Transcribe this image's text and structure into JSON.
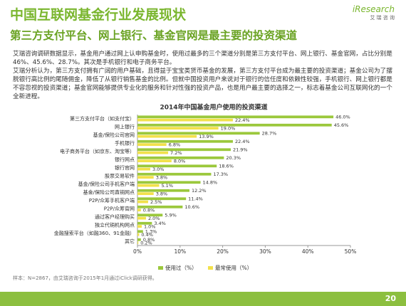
{
  "header": {
    "title": "中国互联网基金行业发展现状",
    "subtitle": "第三方支付平台、网上银行、基金官网是最主要的投资渠道"
  },
  "logo": {
    "name": "iResearch",
    "sub": "艾 瑞 咨 询"
  },
  "body": {
    "paragraphs": [
      "艾瑞咨询调研数据显示，基金用户通过网上认申购基金时，使用过最多的三个渠道分别是第三方支付平台、网上银行、基金官网，占比分别是46%、45.6%、28.7%。其次是手机银行和电子商务平台。",
      "艾瑞分析认为，第三方支付拥有广阔的用户基础，且得益于宝宝类货币基金的发展，第三方支付平台成为最主要的投资渠道；基金公司为了摆脱银行高比例的尾随佣金，降低了从银行销售基金的比例。但就中国投资用户来说对于银行的信任度和依赖性较强，手机银行、网上银行都是不容忽视的投资渠道；基金官网能够提供专业化的服务和针对性强的投资产品，也是用户最主要的选择之一，标志着基金公司互联网化的一个全新进程。"
    ]
  },
  "chart_data": {
    "type": "hbar",
    "title": "2014年中国基金用户使用的投资渠道",
    "categories": [
      "第三方支付平台（如支付宝）",
      "网上银行",
      "基金/保险公司官网",
      "手机银行",
      "电子商务平台（如京东、淘宝等）",
      "银行网点",
      "银行官网",
      "股票交易软件",
      "基金/保险公司手机客户端",
      "基金/保险公司直销网点",
      "P2P/众筹手机客户端",
      "P2P/众筹官网",
      "通过客户经理购买",
      "独立代销机构网点",
      "金融搜索平台（如融360、91金融）",
      "其它"
    ],
    "series": [
      {
        "name": "使用过（%）",
        "color": "#9bc83c",
        "values": [
          46.0,
          45.6,
          28.7,
          22.4,
          21.9,
          20.3,
          18.6,
          17.3,
          14.8,
          12.2,
          11.4,
          10.6,
          5.9,
          3.4,
          1.3,
          0.8
        ],
        "value_labels": [
          "46.0%",
          "45.6%",
          "28.7%",
          "22.4%",
          "21.9%",
          "20.3%",
          "18.6%",
          "17.3%",
          "14.8%",
          "12.2%",
          "11.4%",
          "10.6%",
          "5.9%",
          "3.4%",
          "1.3%",
          "0.8%"
        ]
      },
      {
        "name": "最常使用（%）",
        "color": "#f2e14b",
        "values": [
          22.4,
          19.0,
          13.9,
          6.8,
          7.2,
          8.0,
          3.0,
          3.8,
          5.1,
          3.8,
          2.5,
          0.8,
          2.0,
          1.0,
          0.4,
          0.2
        ],
        "value_labels": [
          "22.4%",
          "19.0%",
          "13.9%",
          "6.8%",
          "7.2%",
          "8.0%",
          "3.0%",
          "3.8%",
          "5.1%",
          "3.8%",
          "2.5%",
          "0.8%",
          "2.0%",
          "1.0%",
          "0.4%",
          "0.2%"
        ]
      }
    ],
    "xlim": [
      0,
      50
    ],
    "xticks": [
      {
        "value": 0,
        "label": "0%"
      },
      {
        "value": 10,
        "label": "10%"
      },
      {
        "value": 20,
        "label": "20%"
      },
      {
        "value": 30,
        "label": "30%"
      },
      {
        "value": 40,
        "label": "40%"
      },
      {
        "value": 50,
        "label": "50%"
      }
    ]
  },
  "footer": {
    "source": "样本：N=2867，由艾瑞咨询于2015年1月通过iClick调研获得。",
    "page": "20"
  }
}
